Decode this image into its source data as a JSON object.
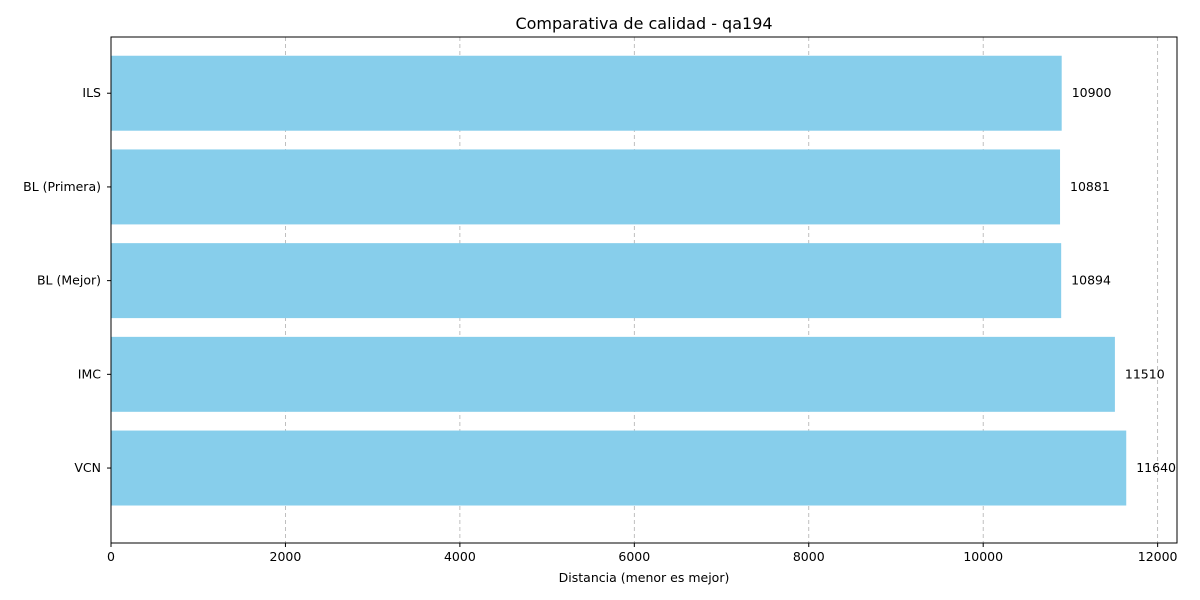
{
  "chart_data": {
    "type": "bar",
    "orientation": "horizontal",
    "title": "Comparativa de calidad - qa194",
    "xlabel": "Distancia (menor es mejor)",
    "ylabel": "",
    "categories": [
      "ILS",
      "BL (Primera)",
      "BL (Mejor)",
      "IMC",
      "VCN"
    ],
    "values": [
      10900,
      10881,
      10894,
      11510,
      11640
    ],
    "xlim": [
      0,
      12222
    ],
    "xticks": [
      0,
      2000,
      4000,
      6000,
      8000,
      10000,
      12000
    ],
    "grid": "x-dashed",
    "bar_color": "#87ceeb"
  }
}
